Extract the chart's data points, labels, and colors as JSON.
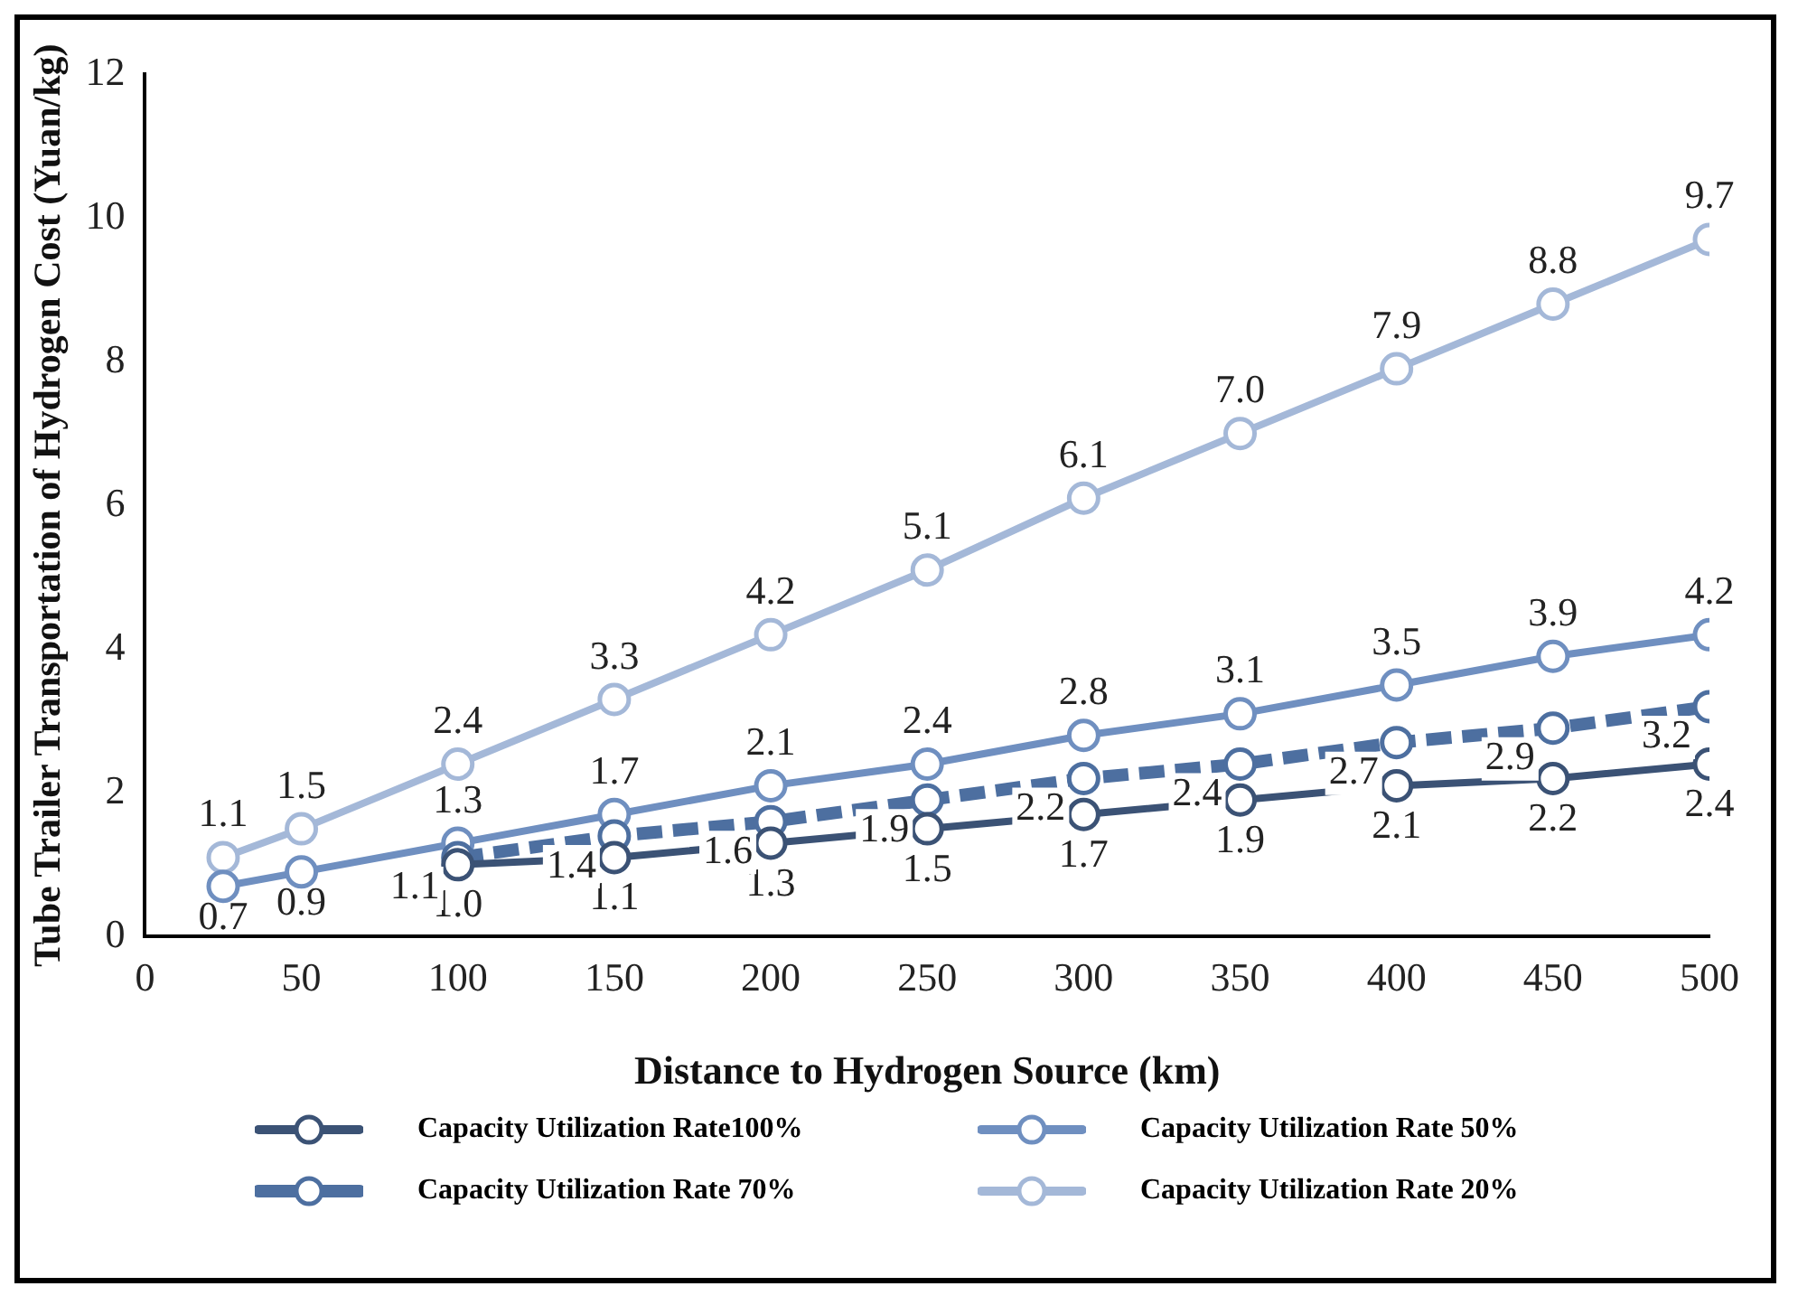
{
  "chart_data": {
    "type": "line",
    "xlabel": "Distance to Hydrogen Source (km)",
    "ylabel": "Tube Trailer Transportation of Hydrogen Cost (Yuan/kg)",
    "x": [
      25,
      50,
      100,
      150,
      200,
      250,
      300,
      350,
      400,
      450,
      500
    ],
    "xlim": [
      0,
      500
    ],
    "xticks": [
      0,
      50,
      100,
      150,
      200,
      250,
      300,
      350,
      400,
      450,
      500
    ],
    "ylim": [
      0,
      12
    ],
    "yticks": [
      0,
      2,
      4,
      6,
      8,
      10,
      12
    ],
    "grid": false,
    "legend": "bottom",
    "marker": "circle",
    "data_labels": true,
    "series": [
      {
        "name": "Capacity Utilization Rate100%",
        "color": "#3b5275",
        "values": [
          null,
          null,
          1.0,
          1.1,
          1.3,
          1.5,
          1.7,
          1.9,
          2.1,
          2.2,
          2.4
        ],
        "value_labels": [
          null,
          null,
          "1.0",
          "1.1",
          "1.3",
          "1.5",
          "1.7",
          "1.9",
          "2.1",
          "2.2",
          "2.4"
        ]
      },
      {
        "name": "Capacity Utilization Rate 70%",
        "color": "#4d6fa0",
        "line_style": "dashed",
        "values": [
          null,
          null,
          1.1,
          1.4,
          1.6,
          1.9,
          2.2,
          2.4,
          2.7,
          2.9,
          3.2
        ]
      },
      {
        "name": "Capacity Utilization Rate 50%",
        "color": "#6f8fc0",
        "values": [
          0.7,
          0.9,
          1.3,
          1.7,
          2.1,
          2.4,
          2.8,
          3.1,
          3.5,
          3.9,
          4.2
        ]
      },
      {
        "name": "Capacity Utilization Rate 20%",
        "color": "#a4b8d8",
        "values": [
          1.1,
          1.5,
          2.4,
          3.3,
          4.2,
          5.1,
          6.1,
          7.0,
          7.9,
          8.8,
          9.7
        ],
        "value_labels": [
          "1.1",
          "1.5",
          "2.4",
          "3.3",
          "4.2",
          "5.1",
          "6.1",
          "7.0",
          "7.9",
          "8.8",
          "9.7"
        ]
      }
    ]
  }
}
